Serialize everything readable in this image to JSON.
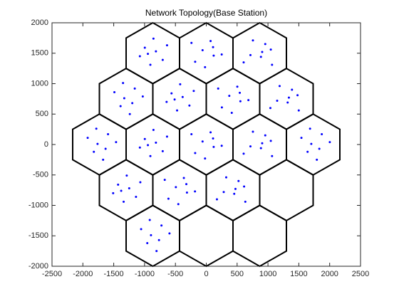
{
  "chart_data": {
    "type": "scatter",
    "title": "Network Topology(Base Station)",
    "color": "#0000ff",
    "x": [
      -816,
      -996,
      -706,
      -906,
      -636,
      -1076,
      -856,
      -946,
      -60,
      120,
      -180,
      70,
      -20,
      250,
      -240,
      110,
      886,
      716,
      956,
      1066,
      756,
      606,
      906,
      1046,
      -1329,
      -1159,
      -1389,
      -1029,
      -1489,
      -1239,
      -1349,
      -1199,
      -383,
      -563,
      -273,
      -473,
      -203,
      -643,
      -423,
      -513,
      373,
      553,
      253,
      503,
      413,
      683,
      193,
      543,
      1319,
      1149,
      1389,
      1499,
      1189,
      1039,
      1339,
      1479,
      -1762,
      -1592,
      -1822,
      -1462,
      -1922,
      -1672,
      -1782,
      -1632,
      -816,
      -996,
      -706,
      -906,
      -636,
      -1076,
      -856,
      -946,
      -60,
      120,
      -180,
      70,
      -20,
      250,
      -240,
      110,
      886,
      716,
      956,
      1066,
      756,
      606,
      906,
      1046,
      1702,
      1872,
      1642,
      2002,
      1542,
      1792,
      1682,
      1832,
      -1249,
      -1429,
      -1139,
      -1339,
      -1069,
      -1509,
      -1289,
      -1379,
      -493,
      -313,
      -613,
      -363,
      -453,
      -183,
      -673,
      -323,
      453,
      283,
      523,
      633,
      323,
      173,
      473,
      613,
      -896,
      -726,
      -956,
      -596,
      -1056,
      -806,
      -916,
      -766
    ],
    "y": [
      1530,
      1590,
      1390,
      1310,
      1630,
      1450,
      1740,
      1490,
      1550,
      1460,
      1360,
      1700,
      1270,
      1480,
      1670,
      1600,
      1440,
      1470,
      1650,
      1310,
      1710,
      1350,
      1520,
      1560,
      760,
      920,
      630,
      790,
      860,
      500,
      1010,
      680,
      780,
      840,
      640,
      560,
      880,
      700,
      990,
      740,
      800,
      710,
      610,
      950,
      520,
      730,
      920,
      850,
      690,
      720,
      900,
      560,
      960,
      600,
      770,
      810,
      10,
      170,
      -120,
      40,
      110,
      -250,
      260,
      -70,
      30,
      90,
      -110,
      -190,
      130,
      -50,
      240,
      -10,
      50,
      -40,
      -140,
      200,
      -230,
      -20,
      170,
      100,
      -60,
      -30,
      150,
      -190,
      210,
      -150,
      20,
      60,
      10,
      170,
      -120,
      40,
      110,
      -250,
      260,
      -70,
      -720,
      -660,
      -860,
      -940,
      -620,
      -800,
      -510,
      -760,
      -700,
      -790,
      -890,
      -550,
      -980,
      -770,
      -580,
      -650,
      -810,
      -780,
      -600,
      -940,
      -540,
      -900,
      -730,
      -690,
      -1490,
      -1330,
      -1620,
      -1460,
      -1390,
      -1750,
      -1240,
      -1570
    ],
    "cells": {
      "color": "#000000",
      "radius": 500,
      "x": [
        -866,
        0,
        866,
        -1299,
        -433,
        433,
        1299,
        -1732,
        -866,
        0,
        866,
        1732,
        -1299,
        -433,
        433,
        1299,
        -866,
        0,
        866
      ],
      "y": [
        1500,
        1500,
        1500,
        750,
        750,
        750,
        750,
        0,
        0,
        0,
        0,
        0,
        -750,
        -750,
        -750,
        -750,
        -1500,
        -1500,
        -1500
      ]
    },
    "xlim": [
      -2500,
      2500
    ],
    "ylim": [
      -2000,
      2000
    ],
    "xticks": [
      -2500,
      -2000,
      -1500,
      -1000,
      -500,
      0,
      500,
      1000,
      1500,
      2000,
      2500
    ],
    "yticks": [
      -2000,
      -1500,
      -1000,
      -500,
      0,
      500,
      1000,
      1500,
      2000
    ]
  }
}
